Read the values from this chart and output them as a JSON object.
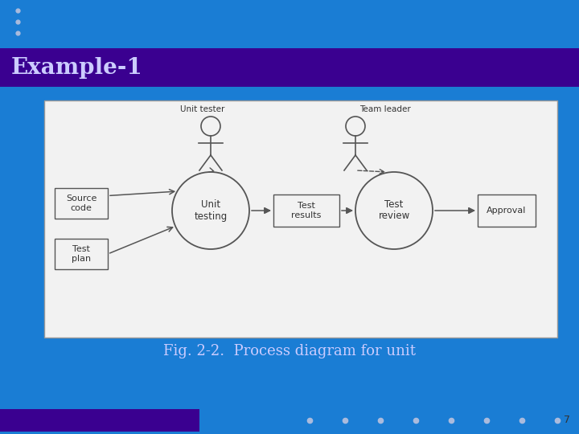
{
  "bg_color": "#1a7dd4",
  "bg_color_header": "#3a0090",
  "bg_color_bottom_bar": "#3a0090",
  "diagram_bg": "#f2f2f2",
  "title": "Example-1",
  "title_color": "#ccccff",
  "title_fontsize": 20,
  "caption": "Fig. 2-2.  Process diagram for unit",
  "caption_color": "#ccccff",
  "caption_fontsize": 13,
  "slide_number": "7",
  "dots_color": "#aabbdd",
  "line_color": "#555555",
  "text_color": "#333333"
}
